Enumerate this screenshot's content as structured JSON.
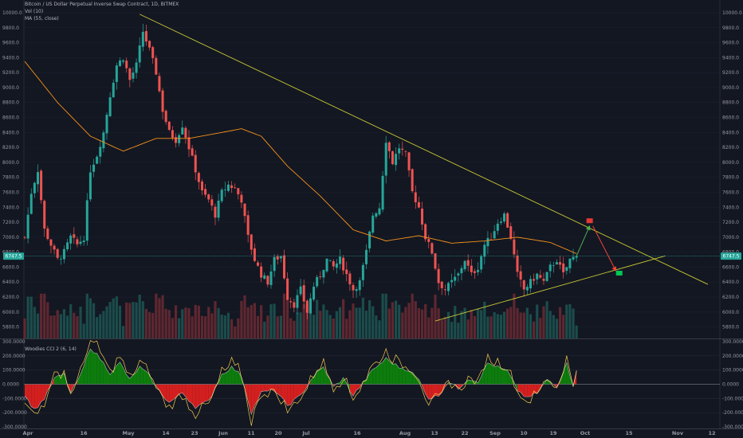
{
  "legend": {
    "title": "Bitcoin / US Dollar Perpetual Inverse Swap Contract, 1D, BITMEX",
    "vol": "Vol (10)",
    "ma": "MA (55, close)",
    "cci": "Woodies CCI 2 (6, 14)"
  },
  "price_badge": "6747.5",
  "colors": {
    "background": "#131722",
    "up": "#26a69a",
    "down": "#ef5350",
    "ma": "#f7931a",
    "trendline": "#c8c832",
    "cci_green": "#0d7c0d",
    "cci_red": "#d41f1f",
    "cci_line": "#f2c94c"
  },
  "chart_data": {
    "type": "candlestick",
    "symbol": "XBTUSD",
    "timeframe": "1D",
    "exchange": "BITMEX",
    "ylim": [
      5700,
      10000
    ],
    "y_ticks": [
      10000,
      9800,
      9600,
      9400,
      9200,
      9000,
      8800,
      8600,
      8400,
      8200,
      8000,
      7800,
      7600,
      7400,
      7200,
      7000,
      6800,
      6600,
      6400,
      6200,
      6000,
      5800
    ],
    "x_tick_labels": [
      "Apr",
      "16",
      "May",
      "14",
      "23",
      "Jun",
      "11",
      "20",
      "Jul",
      "16",
      "Aug",
      "13",
      "22",
      "Sep",
      "10",
      "19",
      "Oct",
      "15",
      "Nov",
      "12"
    ],
    "last_price": 6747.5,
    "price_anchors": [
      {
        "day": 0,
        "price": 7000
      },
      {
        "day": 2,
        "price": 7600
      },
      {
        "day": 4,
        "price": 7900
      },
      {
        "day": 6,
        "price": 7100
      },
      {
        "day": 8,
        "price": 6900
      },
      {
        "day": 10,
        "price": 6700
      },
      {
        "day": 12,
        "price": 6800
      },
      {
        "day": 14,
        "price": 7000
      },
      {
        "day": 16,
        "price": 6900
      },
      {
        "day": 18,
        "price": 7000
      },
      {
        "day": 20,
        "price": 7900
      },
      {
        "day": 22,
        "price": 8100
      },
      {
        "day": 24,
        "price": 8400
      },
      {
        "day": 26,
        "price": 8900
      },
      {
        "day": 28,
        "price": 9300
      },
      {
        "day": 30,
        "price": 9400
      },
      {
        "day": 32,
        "price": 9100
      },
      {
        "day": 34,
        "price": 9300
      },
      {
        "day": 36,
        "price": 9750
      },
      {
        "day": 38,
        "price": 9500
      },
      {
        "day": 40,
        "price": 9200
      },
      {
        "day": 42,
        "price": 8700
      },
      {
        "day": 44,
        "price": 8400
      },
      {
        "day": 46,
        "price": 8300
      },
      {
        "day": 48,
        "price": 8500
      },
      {
        "day": 50,
        "price": 8200
      },
      {
        "day": 52,
        "price": 7900
      },
      {
        "day": 54,
        "price": 7600
      },
      {
        "day": 56,
        "price": 7500
      },
      {
        "day": 58,
        "price": 7300
      },
      {
        "day": 60,
        "price": 7600
      },
      {
        "day": 62,
        "price": 7700
      },
      {
        "day": 64,
        "price": 7650
      },
      {
        "day": 66,
        "price": 7500
      },
      {
        "day": 68,
        "price": 7000
      },
      {
        "day": 70,
        "price": 6700
      },
      {
        "day": 72,
        "price": 6500
      },
      {
        "day": 74,
        "price": 6400
      },
      {
        "day": 76,
        "price": 6700
      },
      {
        "day": 78,
        "price": 6750
      },
      {
        "day": 80,
        "price": 6200
      },
      {
        "day": 82,
        "price": 6100
      },
      {
        "day": 84,
        "price": 6300
      },
      {
        "day": 86,
        "price": 6000
      },
      {
        "day": 88,
        "price": 6350
      },
      {
        "day": 90,
        "price": 6500
      },
      {
        "day": 92,
        "price": 6700
      },
      {
        "day": 94,
        "price": 6600
      },
      {
        "day": 96,
        "price": 6700
      },
      {
        "day": 98,
        "price": 6500
      },
      {
        "day": 100,
        "price": 6300
      },
      {
        "day": 102,
        "price": 6400
      },
      {
        "day": 104,
        "price": 6800
      },
      {
        "day": 106,
        "price": 7300
      },
      {
        "day": 108,
        "price": 7400
      },
      {
        "day": 110,
        "price": 8300
      },
      {
        "day": 112,
        "price": 8000
      },
      {
        "day": 114,
        "price": 8200
      },
      {
        "day": 116,
        "price": 8100
      },
      {
        "day": 118,
        "price": 7600
      },
      {
        "day": 120,
        "price": 7400
      },
      {
        "day": 122,
        "price": 7000
      },
      {
        "day": 124,
        "price": 6800
      },
      {
        "day": 126,
        "price": 6400
      },
      {
        "day": 128,
        "price": 6300
      },
      {
        "day": 130,
        "price": 6400
      },
      {
        "day": 132,
        "price": 6500
      },
      {
        "day": 134,
        "price": 6700
      },
      {
        "day": 136,
        "price": 6500
      },
      {
        "day": 138,
        "price": 6600
      },
      {
        "day": 140,
        "price": 6900
      },
      {
        "day": 142,
        "price": 7000
      },
      {
        "day": 144,
        "price": 7200
      },
      {
        "day": 146,
        "price": 7300
      },
      {
        "day": 148,
        "price": 7000
      },
      {
        "day": 150,
        "price": 6500
      },
      {
        "day": 152,
        "price": 6300
      },
      {
        "day": 154,
        "price": 6400
      },
      {
        "day": 156,
        "price": 6500
      },
      {
        "day": 158,
        "price": 6400
      },
      {
        "day": 160,
        "price": 6600
      },
      {
        "day": 162,
        "price": 6700
      },
      {
        "day": 164,
        "price": 6500
      },
      {
        "day": 166,
        "price": 6700
      },
      {
        "day": 168,
        "price": 6750
      }
    ],
    "ma_anchors": [
      {
        "day": 0,
        "price": 9350
      },
      {
        "day": 10,
        "price": 8800
      },
      {
        "day": 20,
        "price": 8350
      },
      {
        "day": 30,
        "price": 8150
      },
      {
        "day": 40,
        "price": 8320
      },
      {
        "day": 50,
        "price": 8320
      },
      {
        "day": 60,
        "price": 8400
      },
      {
        "day": 66,
        "price": 8450
      },
      {
        "day": 72,
        "price": 8350
      },
      {
        "day": 80,
        "price": 7950
      },
      {
        "day": 90,
        "price": 7550
      },
      {
        "day": 100,
        "price": 7100
      },
      {
        "day": 110,
        "price": 6950
      },
      {
        "day": 120,
        "price": 7020
      },
      {
        "day": 130,
        "price": 6920
      },
      {
        "day": 140,
        "price": 6950
      },
      {
        "day": 150,
        "price": 7000
      },
      {
        "day": 160,
        "price": 6930
      },
      {
        "day": 168,
        "price": 6780
      }
    ],
    "trendlines": [
      {
        "name": "descending resistance",
        "from": {
          "day": 35,
          "price": 9980
        },
        "to": {
          "day": 208,
          "price": 6370
        }
      },
      {
        "name": "ascending support",
        "from": {
          "day": 125,
          "price": 5880
        },
        "to": {
          "day": 195,
          "price": 6750
        }
      }
    ],
    "projection": [
      {
        "day": 168,
        "price": 6750
      },
      {
        "day": 172,
        "price": 7150
      },
      {
        "day": 180,
        "price": 6550
      }
    ],
    "markers": [
      {
        "color": "red",
        "day": 172,
        "price": 7220
      },
      {
        "color": "green",
        "day": 181,
        "price": 6520
      }
    ],
    "volume_ylim": [
      0,
      100
    ],
    "cci": {
      "indicator": "Woodies CCI 2 (6, 14)",
      "ylim": [
        -300,
        300
      ],
      "y_ticks": [
        300,
        200,
        100,
        0,
        -100,
        -200,
        -300
      ],
      "anchors": [
        {
          "day": 0,
          "value": -80
        },
        {
          "day": 3,
          "value": -180
        },
        {
          "day": 6,
          "value": -100
        },
        {
          "day": 9,
          "value": 40
        },
        {
          "day": 12,
          "value": 70
        },
        {
          "day": 14,
          "value": -60
        },
        {
          "day": 17,
          "value": 60
        },
        {
          "day": 20,
          "value": 260
        },
        {
          "day": 23,
          "value": 180
        },
        {
          "day": 26,
          "value": 80
        },
        {
          "day": 29,
          "value": 150
        },
        {
          "day": 32,
          "value": 30
        },
        {
          "day": 35,
          "value": 120
        },
        {
          "day": 38,
          "value": 60
        },
        {
          "day": 40,
          "value": -20
        },
        {
          "day": 44,
          "value": -130
        },
        {
          "day": 48,
          "value": -60
        },
        {
          "day": 52,
          "value": -160
        },
        {
          "day": 56,
          "value": -120
        },
        {
          "day": 60,
          "value": 70
        },
        {
          "day": 63,
          "value": 120
        },
        {
          "day": 66,
          "value": 60
        },
        {
          "day": 69,
          "value": -200
        },
        {
          "day": 72,
          "value": -60
        },
        {
          "day": 76,
          "value": -40
        },
        {
          "day": 80,
          "value": -150
        },
        {
          "day": 84,
          "value": -80
        },
        {
          "day": 88,
          "value": 60
        },
        {
          "day": 91,
          "value": 120
        },
        {
          "day": 94,
          "value": -20
        },
        {
          "day": 97,
          "value": 40
        },
        {
          "day": 100,
          "value": -80
        },
        {
          "day": 103,
          "value": 10
        },
        {
          "day": 106,
          "value": 100
        },
        {
          "day": 110,
          "value": 180
        },
        {
          "day": 114,
          "value": 120
        },
        {
          "day": 117,
          "value": 100
        },
        {
          "day": 120,
          "value": 30
        },
        {
          "day": 123,
          "value": -100
        },
        {
          "day": 126,
          "value": -80
        },
        {
          "day": 129,
          "value": 20
        },
        {
          "day": 132,
          "value": -30
        },
        {
          "day": 135,
          "value": 40
        },
        {
          "day": 138,
          "value": 20
        },
        {
          "day": 141,
          "value": 150
        },
        {
          "day": 144,
          "value": 120
        },
        {
          "day": 147,
          "value": 90
        },
        {
          "day": 150,
          "value": -40
        },
        {
          "day": 153,
          "value": -100
        },
        {
          "day": 156,
          "value": -60
        },
        {
          "day": 159,
          "value": 30
        },
        {
          "day": 162,
          "value": -20
        },
        {
          "day": 165,
          "value": 160
        },
        {
          "day": 167,
          "value": -20
        },
        {
          "day": 168,
          "value": 100
        }
      ]
    }
  }
}
